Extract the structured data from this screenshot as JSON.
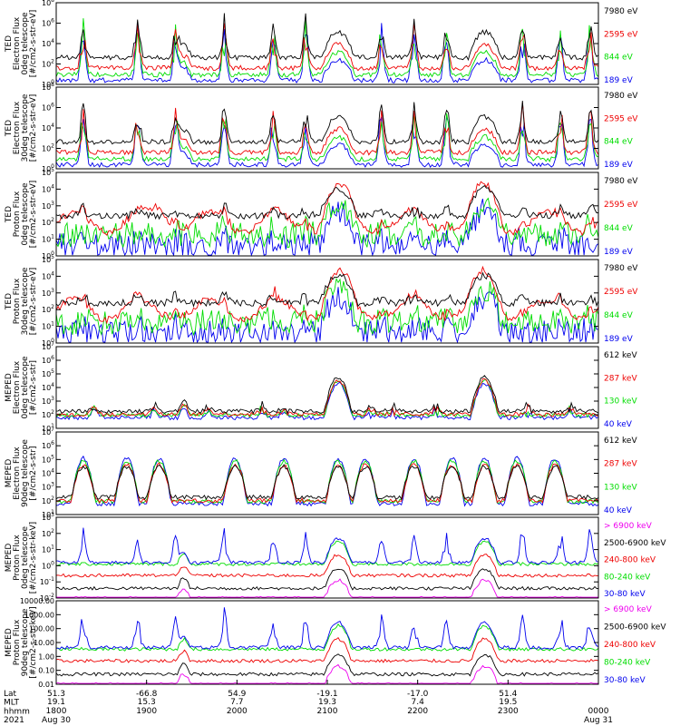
{
  "colors": {
    "black": "#000000",
    "red": "#ee0000",
    "green": "#00dd00",
    "blue": "#0000ee",
    "magenta": "#ee00ee"
  },
  "chart_data": [
    {
      "type": "line",
      "ylabel": [
        "TED",
        "Electron Flux",
        "0deg telescope",
        "[#/cm2-s-str-eV]"
      ],
      "ylim": [
        1,
        100000000
      ],
      "ytick_labels": [
        "10^0",
        "10^2",
        "10^4",
        "10^6",
        "10^8"
      ],
      "series": [
        {
          "name": "7980 eV",
          "color": "black"
        },
        {
          "name": "2595 eV",
          "color": "red"
        },
        {
          "name": "844 eV",
          "color": "green"
        },
        {
          "name": "189 eV",
          "color": "blue"
        }
      ]
    },
    {
      "type": "line",
      "ylabel": [
        "TED",
        "Electron Flux",
        "30deg telescope",
        "[#/cm2-s-str-eV]"
      ],
      "ylim": [
        1,
        100000000
      ],
      "ytick_labels": [
        "10^0",
        "10^2",
        "10^4",
        "10^6",
        "10^8"
      ],
      "series": [
        {
          "name": "7980 eV",
          "color": "black"
        },
        {
          "name": "2595 eV",
          "color": "red"
        },
        {
          "name": "844 eV",
          "color": "green"
        },
        {
          "name": "189 eV",
          "color": "blue"
        }
      ]
    },
    {
      "type": "line",
      "ylabel": [
        "TED",
        "Proton Flux",
        "0deg telescope",
        "[#/cm2-s-str-eV]"
      ],
      "ylim": [
        1,
        100000
      ],
      "ytick_labels": [
        "10^0",
        "10^1",
        "10^2",
        "10^3",
        "10^4",
        "10^5"
      ],
      "series": [
        {
          "name": "7980 eV",
          "color": "black"
        },
        {
          "name": "2595 eV",
          "color": "red"
        },
        {
          "name": "844 eV",
          "color": "green"
        },
        {
          "name": "189 eV",
          "color": "blue"
        }
      ]
    },
    {
      "type": "line",
      "ylabel": [
        "TED",
        "Proton Flux",
        "30deg telescope",
        "[#/cm2-s-str-eV]"
      ],
      "ylim": [
        1,
        100000
      ],
      "ytick_labels": [
        "10^0",
        "10^1",
        "10^2",
        "10^3",
        "10^4",
        "10^5"
      ],
      "series": [
        {
          "name": "7980 eV",
          "color": "black"
        },
        {
          "name": "2595 eV",
          "color": "red"
        },
        {
          "name": "844 eV",
          "color": "green"
        },
        {
          "name": "189 eV",
          "color": "blue"
        }
      ]
    },
    {
      "type": "line",
      "ylabel": [
        "MEPED",
        "Electron Flux",
        "0deg telescope",
        "[#/cm2-s-str]"
      ],
      "ylim": [
        10,
        10000000
      ],
      "ytick_labels": [
        "10^1",
        "10^2",
        "10^3",
        "10^4",
        "10^5",
        "10^6",
        "10^7"
      ],
      "series": [
        {
          "name": "612 keV",
          "color": "black"
        },
        {
          "name": "287 keV",
          "color": "red"
        },
        {
          "name": "130 keV",
          "color": "green"
        },
        {
          "name": "40 keV",
          "color": "blue"
        }
      ]
    },
    {
      "type": "line",
      "ylabel": [
        "MEPED",
        "Electron Flux",
        "90deg telescope",
        "[#/cm2-s-str]"
      ],
      "ylim": [
        10,
        10000000
      ],
      "ytick_labels": [
        "10^1",
        "10^2",
        "10^3",
        "10^4",
        "10^5",
        "10^6",
        "10^7"
      ],
      "series": [
        {
          "name": "612 keV",
          "color": "black"
        },
        {
          "name": "287 keV",
          "color": "red"
        },
        {
          "name": "130 keV",
          "color": "green"
        },
        {
          "name": "40 keV",
          "color": "blue"
        }
      ]
    },
    {
      "type": "line",
      "ylabel": [
        "MEPED",
        "Proton Flux",
        "0deg telescope",
        "[#/cm2-s-str-keV]"
      ],
      "ylim": [
        0.01,
        10000
      ],
      "ytick_labels": [
        "10^-2",
        "10^-1",
        "10^0",
        "10^1",
        "10^2",
        "10^3"
      ],
      "series": [
        {
          "name": "> 6900 keV",
          "color": "magenta"
        },
        {
          "name": "2500-6900 keV",
          "color": "black"
        },
        {
          "name": "240-800 keV",
          "color": "red"
        },
        {
          "name": "80-240 keV",
          "color": "green"
        },
        {
          "name": "30-80 keV",
          "color": "blue"
        }
      ]
    },
    {
      "type": "line",
      "ylabel": [
        "MEPED",
        "Proton Flux",
        "90deg telescope",
        "[#/cm2-s-str-keV]"
      ],
      "ylim": [
        0.01,
        10000
      ],
      "ytick_labels": [
        "10000.00",
        "1000.00",
        "100.00",
        "10.00",
        "1.00",
        "0.10",
        "0.01"
      ],
      "series": [
        {
          "name": "> 6900 keV",
          "color": "magenta"
        },
        {
          "name": "2500-6900 keV",
          "color": "black"
        },
        {
          "name": "240-800 keV",
          "color": "red"
        },
        {
          "name": "80-240 keV",
          "color": "green"
        },
        {
          "name": "30-80 keV",
          "color": "blue"
        }
      ]
    }
  ],
  "xaxis": {
    "row_labels": [
      "Lat",
      "MLT",
      "hhmm",
      "2021"
    ],
    "ticks": [
      {
        "hhmm": "1800",
        "lat": "51.3",
        "mlt": "19.1",
        "date": "Aug 30"
      },
      {
        "hhmm": "1900",
        "lat": "-66.8",
        "mlt": "15.3",
        "date": ""
      },
      {
        "hhmm": "2000",
        "lat": "54.9",
        "mlt": "7.7",
        "date": ""
      },
      {
        "hhmm": "2100",
        "lat": "-19.1",
        "mlt": "19.3",
        "date": ""
      },
      {
        "hhmm": "2200",
        "lat": "-17.0",
        "mlt": "7.4",
        "date": ""
      },
      {
        "hhmm": "2300",
        "lat": "51.4",
        "mlt": "19.5",
        "date": ""
      },
      {
        "hhmm": "0000",
        "lat": "",
        "mlt": "",
        "date": "Aug 31"
      }
    ]
  }
}
